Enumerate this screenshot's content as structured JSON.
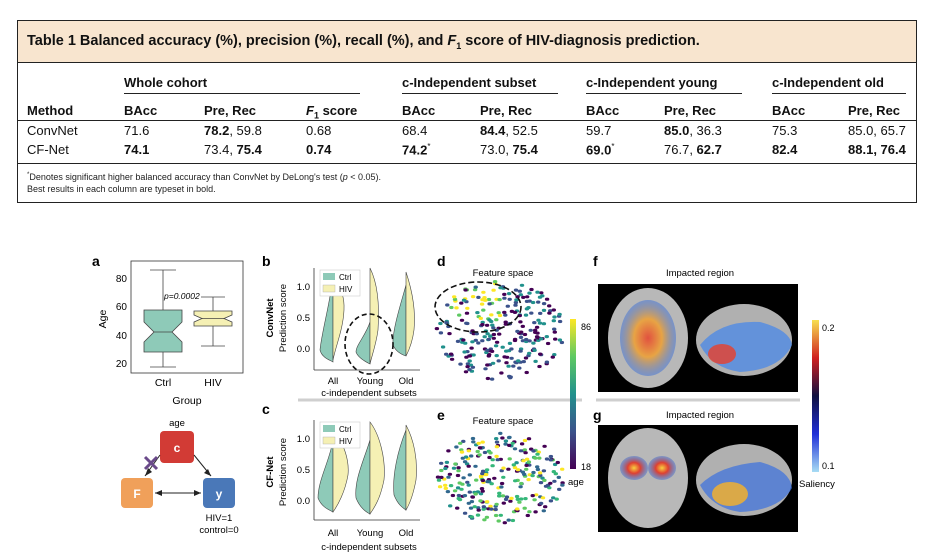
{
  "table": {
    "caption_prefix": "Table 1 Balanced accuracy (%), precision (%), recall (%), and ",
    "caption_f": "F",
    "caption_sub": "1",
    "caption_suffix": " score of HIV-diagnosis prediction.",
    "groups": [
      "Whole cohort",
      "c-Independent subset",
      "c-Independent young",
      "c-Independent old"
    ],
    "headers": {
      "method": "Method",
      "bacc": "BAcc",
      "prerec": "Pre, Rec",
      "f_letter": "F",
      "f_sub": "1",
      "f_suffix": " score"
    },
    "rows": [
      {
        "method": "ConvNet",
        "whole_bacc": "71.6",
        "whole_pre": "78.2",
        "whole_sep": ", ",
        "whole_rec": "59.8",
        "whole_f1": "0.68",
        "sub_bacc": "68.4",
        "sub_pre": "84.4",
        "sub_sep": ", ",
        "sub_rec": "52.5",
        "young_bacc": "59.7",
        "young_pre": "85.0",
        "young_sep": ", ",
        "young_rec": "36.3",
        "old_bacc": "75.3",
        "old_prerec": "85.0, 65.7"
      },
      {
        "method": "CF-Net",
        "whole_bacc": "74.1",
        "whole_pre": "73.4",
        "whole_sep": ", ",
        "whole_rec": "75.4",
        "whole_f1": "0.74",
        "sub_bacc": "74.2",
        "sub_mark": "*",
        "sub_pre": "73.0",
        "sub_sep": ", ",
        "sub_rec": "75.4",
        "young_bacc": "69.0",
        "young_mark": "*",
        "young_pre": "76.7",
        "young_sep": ", ",
        "young_rec": "62.7",
        "old_bacc": "82.4",
        "old_pre": "88.1",
        "old_sep": ", ",
        "old_rec": "76.4"
      }
    ],
    "footnote1_star": "*",
    "footnote1_a": "Denotes significant higher balanced accuracy than ConvNet by DeLong's test (",
    "footnote1_p": "p",
    "footnote1_b": " < 0.05).",
    "footnote2": "Best results in each column are typeset in bold."
  },
  "figure": {
    "panel_labels": {
      "a": "a",
      "b": "b",
      "c": "c",
      "d": "d",
      "e": "e",
      "f": "f",
      "g": "g"
    },
    "panel_a": {
      "ylabel": "Age",
      "xlabel": "Group",
      "yticks": [
        "20",
        "40",
        "60",
        "80"
      ],
      "groups": [
        "Ctrl",
        "HIV"
      ],
      "pvalue": "p=0.0002",
      "colors": {
        "ctrl": "#8ecab8",
        "hiv": "#f5f0b4"
      }
    },
    "panel_a_diagram": {
      "c_label": "c",
      "c_caption": "age",
      "f_label": "F",
      "y_label": "y",
      "y_caption_1": "HIV=1",
      "y_caption_2": "control=0",
      "colors": {
        "c": "#d23b35",
        "f": "#f0a05a",
        "y": "#4a78b8",
        "cross": "#6a4a8a"
      }
    },
    "panel_b": {
      "row_label": "ConvNet",
      "ylabel": "Prediction score",
      "yticks": [
        "0.0",
        "0.5",
        "1.0"
      ],
      "legend": [
        "Ctrl",
        "HIV"
      ]
    },
    "panel_c": {
      "row_label": "CF-Net",
      "ylabel": "Prediction score",
      "yticks": [
        "0.0",
        "0.5",
        "1.0"
      ],
      "legend": [
        "Ctrl",
        "HIV"
      ],
      "xticks": [
        "All",
        "Young",
        "Old"
      ],
      "xlabel": "c-independent subsets"
    },
    "panel_b_x": {
      "xticks": [
        "All",
        "Young",
        "Old"
      ],
      "xlabel": "c-independent subsets"
    },
    "panel_d": {
      "title": "Feature space"
    },
    "panel_e": {
      "title": "Feature space"
    },
    "colorbar_age": {
      "max": "86",
      "min": "18",
      "label": "age"
    },
    "panel_f": {
      "title": "Impacted region"
    },
    "panel_g": {
      "title": "Impacted region"
    },
    "colorbar_saliency": {
      "max": "0.2",
      "min": "0.1",
      "label": "Saliency"
    }
  }
}
